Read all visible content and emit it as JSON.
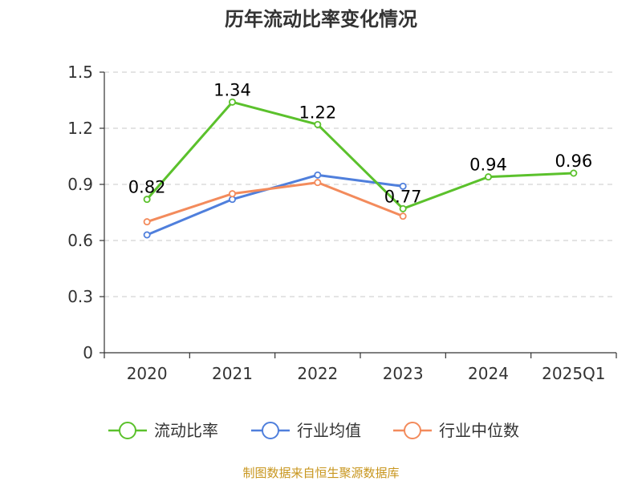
{
  "chart_data": {
    "type": "line",
    "title": "历年流动比率变化情况",
    "categories": [
      "2020",
      "2021",
      "2022",
      "2023",
      "2024",
      "2025Q1"
    ],
    "ylim": [
      0,
      1.5
    ],
    "yticks": [
      "0",
      "0.3",
      "0.6",
      "0.9",
      "1.2",
      "1.5"
    ],
    "ytick_values": [
      0,
      0.3,
      0.6,
      0.9,
      1.2,
      1.5
    ],
    "grid": true,
    "legend_position": "bottom",
    "series": [
      {
        "name": "流动比率",
        "color": "#5bc12c",
        "values": [
          0.82,
          1.34,
          1.22,
          0.77,
          0.94,
          0.96
        ],
        "labels": [
          "0.82",
          "1.34",
          "1.22",
          "0.77",
          "0.94",
          "0.96"
        ]
      },
      {
        "name": "行业均值",
        "color": "#4f7fdc",
        "values": [
          0.63,
          0.82,
          0.95,
          0.89,
          null,
          null
        ]
      },
      {
        "name": "行业中位数",
        "color": "#f38b5c",
        "values": [
          0.7,
          0.85,
          0.91,
          0.73,
          null,
          null
        ]
      }
    ]
  },
  "source": "制图数据来自恒生聚源数据库"
}
